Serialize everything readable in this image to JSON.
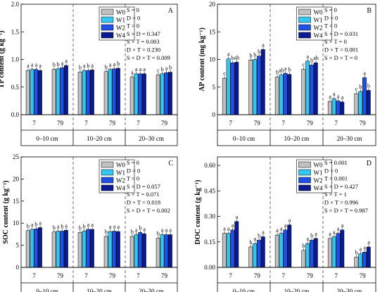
{
  "chart_data": [
    {
      "type": "bar",
      "panel": "A",
      "ylabel": "TP content (g kg⁻¹)",
      "ylim": [
        0,
        2
      ],
      "yticks": [
        0.0,
        0.5,
        1.0,
        1.5,
        2.0
      ],
      "ytick_labels": [
        "0.0",
        "0.5",
        "1.0",
        "1.5",
        "2.0"
      ],
      "categories": [
        "7",
        "79",
        "7",
        "79",
        "7",
        "79"
      ],
      "depth_groups": [
        "0–10 cm",
        "10–20 cm",
        "20–30 cm"
      ],
      "legend": [
        "W0",
        "W1",
        "W2",
        "W4"
      ],
      "series_colors": [
        "#c0c0c0",
        "#33c6f0",
        "#2050e6",
        "#0a1a90"
      ],
      "series": [
        {
          "name": "W0",
          "values": [
            0.8,
            0.82,
            0.77,
            0.78,
            0.68,
            0.72
          ]
        },
        {
          "name": "W1",
          "values": [
            0.82,
            0.83,
            0.8,
            0.82,
            0.74,
            0.74
          ]
        },
        {
          "name": "W2",
          "values": [
            0.82,
            0.85,
            0.8,
            0.83,
            0.74,
            0.76
          ]
        },
        {
          "name": "W4",
          "values": [
            0.8,
            0.89,
            0.81,
            0.84,
            0.74,
            0.77
          ]
        }
      ],
      "letters": [
        [
          "a",
          "a",
          "a",
          "a"
        ],
        [
          "b",
          "b",
          "a",
          "a"
        ],
        [
          "b",
          "a",
          "b",
          "a"
        ],
        [
          "b",
          "a",
          "a",
          "b"
        ],
        [
          "a",
          "a",
          "a",
          "a"
        ],
        [
          "c",
          "b",
          "a",
          "b"
        ]
      ],
      "stats": [
        "S = 0",
        "D = 0",
        "T = 0",
        "S × D = 0.347",
        "S × T = 0.003",
        "D × T = 0.230",
        "S × D × T = 0.009"
      ]
    },
    {
      "type": "bar",
      "panel": "B",
      "ylabel": "AP content (mg kg⁻¹)",
      "ylim": [
        0,
        20
      ],
      "yticks": [
        0,
        5,
        10,
        15,
        20
      ],
      "ytick_labels": [
        "0",
        "5",
        "10",
        "15",
        "20"
      ],
      "categories": [
        "7",
        "79",
        "7",
        "79",
        "7",
        "79"
      ],
      "depth_groups": [
        "0–10 cm",
        "10–20 cm",
        "20–30 cm"
      ],
      "legend": [
        "W0",
        "W1",
        "W2",
        "W4"
      ],
      "series_colors": [
        "#c0c0c0",
        "#33c6f0",
        "#2050e6",
        "#0a1a90"
      ],
      "series": [
        {
          "name": "W0",
          "values": [
            6.6,
            9.9,
            6.8,
            8.2,
            2.4,
            3.8
          ]
        },
        {
          "name": "W1",
          "values": [
            10.1,
            10.0,
            7.2,
            9.7,
            2.9,
            4.2
          ]
        },
        {
          "name": "W2",
          "values": [
            9.4,
            10.6,
            7.5,
            9.0,
            2.5,
            6.7
          ]
        },
        {
          "name": "W4",
          "values": [
            9.5,
            11.8,
            7.3,
            9.4,
            2.3,
            4.4
          ]
        }
      ],
      "letters": [
        [
          "c",
          "a",
          "b",
          "ab"
        ],
        [
          "b",
          "b",
          "b",
          "a"
        ],
        [
          "b",
          "ab",
          "a",
          "b"
        ],
        [
          "c",
          "a",
          "b",
          "ab"
        ],
        [
          "a",
          "a",
          "a",
          "a"
        ],
        [
          "c",
          "b",
          "a",
          "b"
        ]
      ],
      "stats": [
        "S = 0",
        "D = 0",
        "T = 0",
        "S × D = 0.031",
        "S × T = 0",
        "D × T = 0.001",
        "S × D × T = 0"
      ]
    },
    {
      "type": "bar",
      "panel": "C",
      "ylabel": "SOC content (g kg⁻¹)",
      "ylim": [
        0,
        25
      ],
      "yticks": [
        0,
        5,
        10,
        15,
        20,
        25
      ],
      "ytick_labels": [
        "0",
        "5",
        "10",
        "15",
        "20",
        "25"
      ],
      "categories": [
        "7",
        "79",
        "7",
        "79",
        "7",
        "79"
      ],
      "depth_groups": [
        "0–10 cm",
        "10–20 cm",
        "20–30 cm"
      ],
      "legend": [
        "W0",
        "W1",
        "W2",
        "W4"
      ],
      "series_colors": [
        "#c0c0c0",
        "#33c6f0",
        "#2050e6",
        "#0a1a90"
      ],
      "series": [
        {
          "name": "W0",
          "values": [
            8.3,
            8.0,
            7.9,
            7.0,
            7.0,
            6.6
          ]
        },
        {
          "name": "W1",
          "values": [
            8.6,
            8.2,
            8.2,
            8.1,
            7.4,
            7.4
          ]
        },
        {
          "name": "W2",
          "values": [
            8.7,
            8.2,
            8.6,
            8.2,
            7.9,
            7.4
          ]
        },
        {
          "name": "W4",
          "values": [
            9.0,
            8.4,
            8.6,
            8.1,
            7.6,
            7.4
          ]
        }
      ],
      "letters": [
        [
          "b",
          "a",
          "b",
          "a"
        ],
        [
          "b",
          "a",
          "b",
          "a"
        ],
        [
          "b",
          "b",
          "a",
          "a"
        ],
        [
          "b",
          "a",
          "a",
          "a"
        ],
        [
          "b",
          "a",
          "b",
          "a"
        ],
        [
          "b",
          "a",
          "a",
          "a"
        ]
      ],
      "stats": [
        "S = 0",
        "D = 0",
        "T = 0",
        "S × D = 0.057",
        "S × T = 0.071",
        "D × T = 0.018",
        "S × D × T = 0.002"
      ]
    },
    {
      "type": "bar",
      "panel": "D",
      "ylabel": "DOC content (g kg⁻¹)",
      "ylim": [
        0,
        0.65
      ],
      "yticks": [
        0.0,
        0.15,
        0.3,
        0.45,
        0.6
      ],
      "ytick_labels": [
        "0.00",
        "0.15",
        "0.30",
        "0.45",
        "0.60"
      ],
      "categories": [
        "7",
        "79",
        "7",
        "79",
        "7",
        "79"
      ],
      "depth_groups": [
        "0–10 cm",
        "10–20 cm",
        "20–30 cm"
      ],
      "legend": [
        "W0",
        "W1",
        "W2",
        "W4"
      ],
      "series_colors": [
        "#c0c0c0",
        "#33c6f0",
        "#2050e6",
        "#0a1a90"
      ],
      "series": [
        {
          "name": "W0",
          "values": [
            0.2,
            0.12,
            0.19,
            0.1,
            0.17,
            0.06
          ]
        },
        {
          "name": "W1",
          "values": [
            0.2,
            0.14,
            0.2,
            0.14,
            0.18,
            0.08
          ]
        },
        {
          "name": "W2",
          "values": [
            0.22,
            0.16,
            0.22,
            0.16,
            0.2,
            0.09
          ]
        },
        {
          "name": "W4",
          "values": [
            0.27,
            0.18,
            0.25,
            0.17,
            0.22,
            0.12
          ]
        }
      ],
      "letters": [
        [
          "a",
          "a",
          "a",
          "a"
        ],
        [
          "b",
          "a",
          "b",
          "a"
        ],
        [
          "a",
          "a",
          "a",
          "a"
        ],
        [
          "b",
          "a",
          "b",
          "a"
        ],
        [
          "a",
          "a",
          "a",
          "a"
        ],
        [
          "b",
          "a",
          "a",
          "a"
        ]
      ],
      "stats": [
        "S = 0.001",
        "D = 0",
        "T = 0.001",
        "S × D = 0.427",
        "S × T = 1",
        "D × T = 0.996",
        "S × D × T = 0.987"
      ]
    }
  ]
}
